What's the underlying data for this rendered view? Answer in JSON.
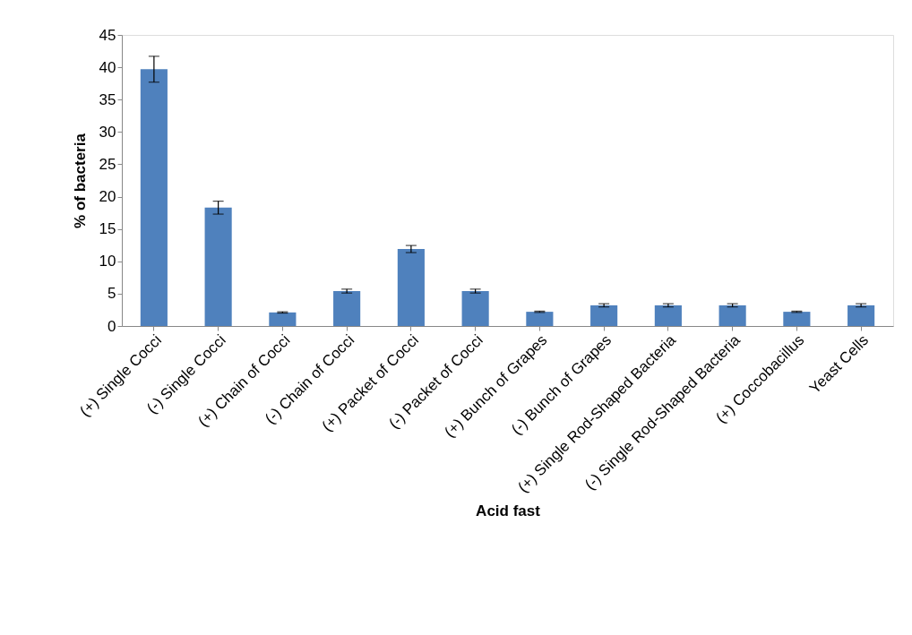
{
  "chart_data": {
    "type": "bar",
    "xlabel": "Acid fast",
    "ylabel": "% of bacteria",
    "categories": [
      "(+) Single Cocci",
      "(-) Single Cocci",
      "(+) Chain of Cocci",
      "(-) Chain of Cocci",
      "(+) Packet of Cocci",
      "(-) Packet of Cocci",
      "(+) Bunch of Grapes",
      "(-) Bunch of Grapes",
      "(+) Single Rod-Shaped Bacteria",
      "(-) Single Rod-Shaped Bacteria",
      "(+) Coccobacillus",
      "Yeast Cells"
    ],
    "values": [
      39.7,
      18.3,
      2.1,
      5.4,
      11.9,
      5.4,
      2.2,
      3.2,
      3.2,
      3.2,
      2.2,
      3.2
    ],
    "errors": [
      2.0,
      1.0,
      0.1,
      0.3,
      0.55,
      0.3,
      0.1,
      0.25,
      0.25,
      0.25,
      0.1,
      0.25
    ],
    "color": "#4f81bd",
    "ylim": [
      0,
      45
    ],
    "yticks": [
      0,
      5,
      10,
      15,
      20,
      25,
      30,
      35,
      40,
      45
    ],
    "grid": false
  }
}
